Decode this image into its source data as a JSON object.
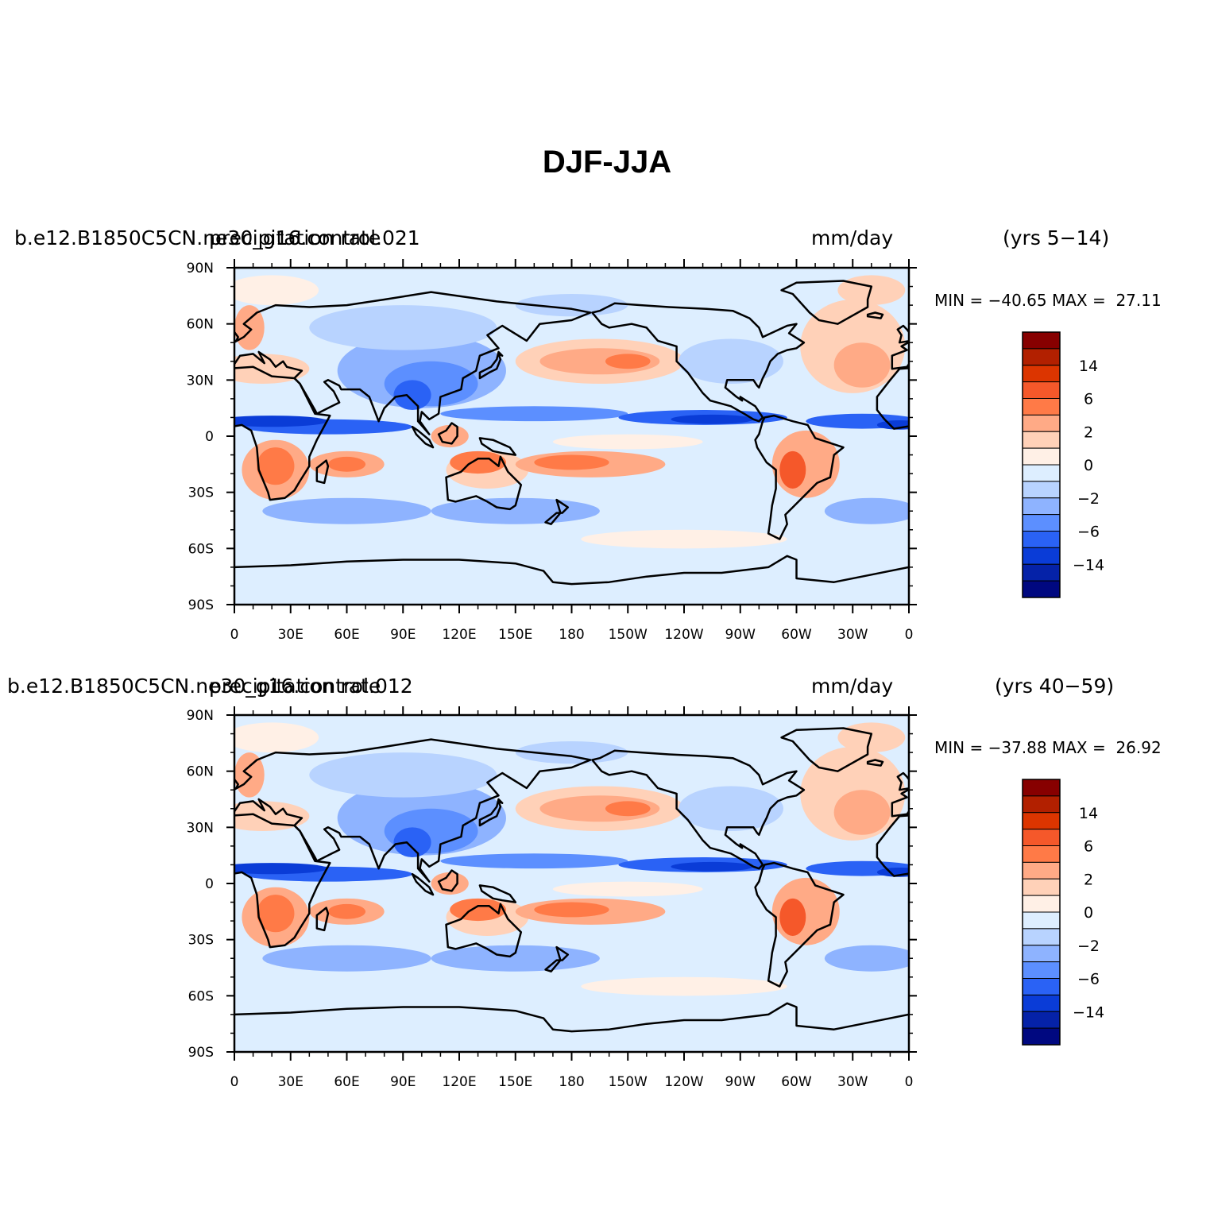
{
  "title": "DJF-JJA",
  "panels": [
    {
      "left_label": "b.e12.B1850C5CN.ne30_g16.control.021",
      "left_overlay": "precipitation rate",
      "units": "mm/day",
      "period": "(yrs 5−14)",
      "min_label": "MIN =",
      "min_value": "−40.65",
      "max_label": "MAX =",
      "max_value": "27.11"
    },
    {
      "left_label": "b.e12.B1850C5CN.ne30_g16.control.012",
      "left_overlay": "precipitation rate",
      "units": "mm/day",
      "period": "(yrs 40−59)",
      "min_label": "MIN =",
      "min_value": "−37.88",
      "max_label": "MAX =",
      "max_value": "26.92"
    }
  ],
  "lat_ticks": [
    "90N",
    "60N",
    "30N",
    "0",
    "30S",
    "60S",
    "90S"
  ],
  "lon_ticks": [
    "0",
    "30E",
    "60E",
    "90E",
    "120E",
    "150E",
    "180",
    "150W",
    "120W",
    "90W",
    "60W",
    "30W",
    "0"
  ],
  "colorbar": {
    "labels": [
      "14",
      "6",
      "2",
      "0",
      "−2",
      "−6",
      "−14"
    ],
    "colors": [
      "#870000",
      "#B22000",
      "#DC3500",
      "#F5582A",
      "#FF7A47",
      "#FFAA86",
      "#FFD1B8",
      "#FFF0E6",
      "#DDEEFF",
      "#B8D3FF",
      "#8EB3FF",
      "#5C8FFF",
      "#2A62F5",
      "#0A3CD7",
      "#0522A8",
      "#000880"
    ]
  },
  "colors": {
    "land_outline": "#000000",
    "ocean_background": "#DDEEFF"
  }
}
